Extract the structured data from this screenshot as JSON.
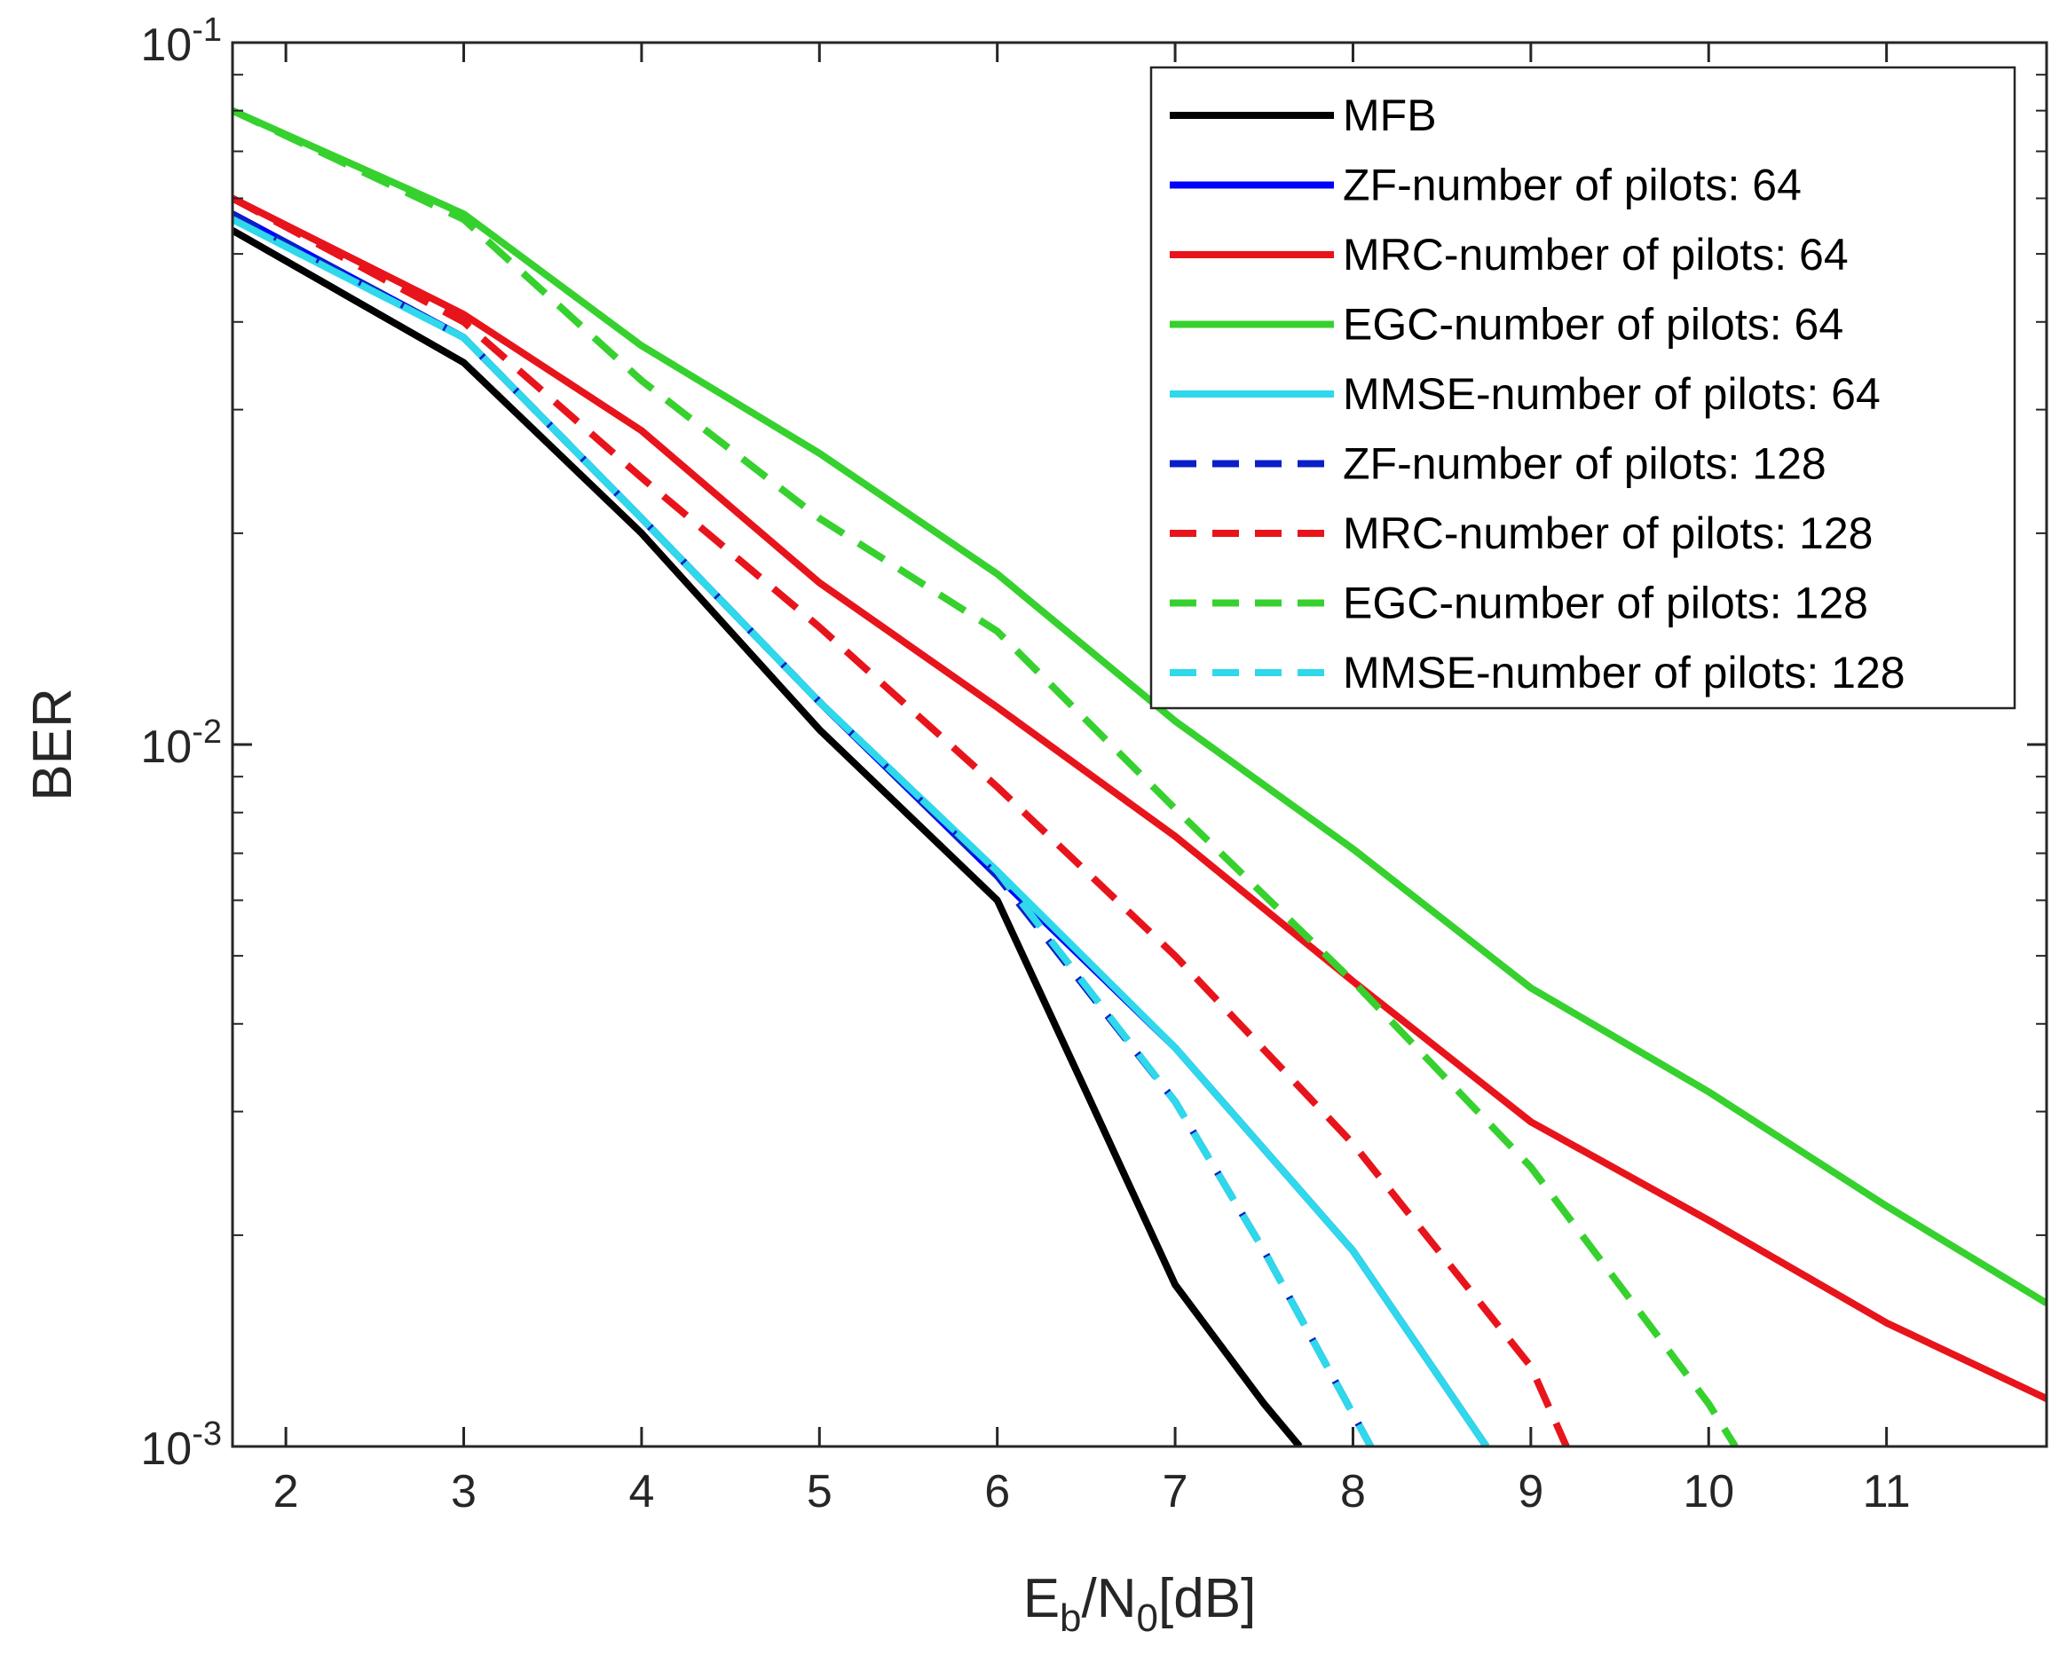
{
  "chart_data": {
    "type": "line",
    "y_scale": "log",
    "xlabel": {
      "main": "E",
      "sub1": "b",
      "mid": "/N",
      "sub2": "0",
      "tail": "[dB]"
    },
    "ylabel": "BER",
    "xlim": [
      1.7,
      11.9
    ],
    "ylim": [
      0.001,
      0.1
    ],
    "xticks": [
      2,
      3,
      4,
      5,
      6,
      7,
      8,
      9,
      10,
      11
    ],
    "yticks": [
      {
        "value": 0.1,
        "base": "10",
        "exp": "-1"
      },
      {
        "value": 0.01,
        "base": "10",
        "exp": "-2"
      },
      {
        "value": 0.001,
        "base": "10",
        "exp": "-3"
      }
    ],
    "legend_position": "top-right",
    "series": [
      {
        "name": "MFB",
        "color": "#000000",
        "dash": "solid",
        "x": [
          1.7,
          3,
          4,
          5,
          6,
          6.5,
          7,
          7.5,
          7.7
        ],
        "y": [
          0.054,
          0.035,
          0.02,
          0.0105,
          0.006,
          0.0032,
          0.0017,
          0.00115,
          0.001
        ]
      },
      {
        "name": "ZF-number of  pilots: 64",
        "color": "#0000ff",
        "dash": "solid",
        "x": [
          1.7,
          3,
          4,
          5,
          6,
          7,
          8,
          8.75
        ],
        "y": [
          0.057,
          0.038,
          0.021,
          0.0115,
          0.0065,
          0.0037,
          0.0019,
          0.001
        ]
      },
      {
        "name": "MRC-number of  pilots: 64",
        "color": "#e8141b",
        "dash": "solid",
        "x": [
          1.7,
          3,
          4,
          5,
          6,
          7,
          8,
          9,
          10,
          11,
          11.9
        ],
        "y": [
          0.06,
          0.041,
          0.028,
          0.017,
          0.0113,
          0.0074,
          0.0046,
          0.0029,
          0.0021,
          0.0015,
          0.00117
        ]
      },
      {
        "name": "EGC-number of  pilots: 64",
        "color": "#36d12e",
        "dash": "solid",
        "x": [
          1.7,
          3,
          4,
          5,
          6,
          7,
          8,
          9,
          10,
          11,
          11.9
        ],
        "y": [
          0.08,
          0.057,
          0.037,
          0.026,
          0.0175,
          0.0108,
          0.0071,
          0.0045,
          0.0032,
          0.0022,
          0.0016
        ]
      },
      {
        "name": "MMSE-number of  pilots: 64",
        "color": "#2fd8ea",
        "dash": "solid",
        "x": [
          1.7,
          3,
          4,
          5,
          6,
          7,
          8,
          8.75
        ],
        "y": [
          0.056,
          0.038,
          0.021,
          0.0115,
          0.0066,
          0.0037,
          0.0019,
          0.001
        ]
      },
      {
        "name": "ZF-number of  pilots: 128",
        "color": "#0a1fc8",
        "dash": "dashed",
        "x": [
          1.7,
          3,
          4,
          5,
          6,
          7,
          7.5,
          8.1
        ],
        "y": [
          0.057,
          0.038,
          0.021,
          0.0115,
          0.0065,
          0.0031,
          0.0019,
          0.001
        ]
      },
      {
        "name": "MRC-number of  pilots: 128",
        "color": "#e8141b",
        "dash": "dashed",
        "x": [
          1.7,
          3,
          4,
          5,
          6,
          7,
          8,
          9,
          9.2
        ],
        "y": [
          0.06,
          0.04,
          0.024,
          0.0147,
          0.0087,
          0.005,
          0.0027,
          0.0013,
          0.001
        ]
      },
      {
        "name": "EGC-number of  pilots: 128",
        "color": "#36d12e",
        "dash": "dashed",
        "x": [
          1.7,
          3,
          4,
          5,
          6,
          7,
          8,
          9,
          10,
          10.15
        ],
        "y": [
          0.08,
          0.056,
          0.033,
          0.021,
          0.0145,
          0.0081,
          0.0046,
          0.0025,
          0.00115,
          0.001
        ]
      },
      {
        "name": "MMSE-number of  pilots: 128",
        "color": "#2fd8ea",
        "dash": "dashed",
        "x": [
          1.7,
          3,
          4,
          5,
          6,
          7,
          7.5,
          8.1
        ],
        "y": [
          0.056,
          0.038,
          0.021,
          0.0115,
          0.0066,
          0.0031,
          0.0019,
          0.001
        ]
      }
    ]
  }
}
